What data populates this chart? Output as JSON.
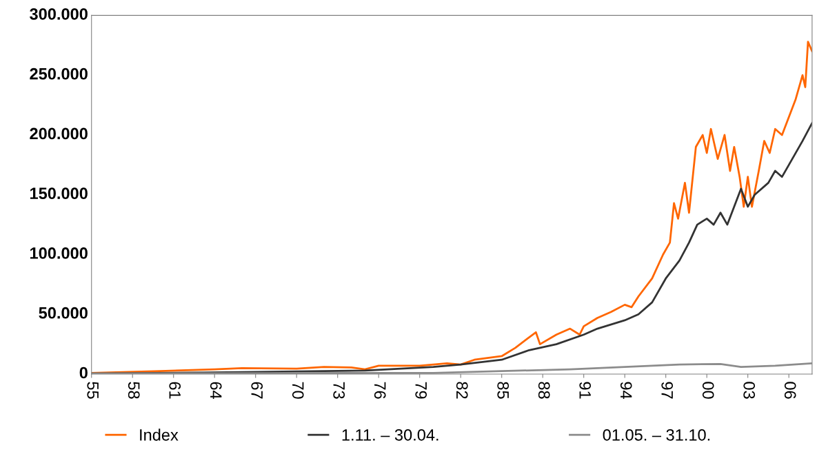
{
  "chart_data": {
    "type": "line",
    "legend": "bottom",
    "grid": false,
    "xlim": [
      1955,
      2007.7
    ],
    "xticks": [
      {
        "value": 1955,
        "label": "55"
      },
      {
        "value": 1958,
        "label": "58"
      },
      {
        "value": 1961,
        "label": "61"
      },
      {
        "value": 1964,
        "label": "64"
      },
      {
        "value": 1967,
        "label": "67"
      },
      {
        "value": 1970,
        "label": "70"
      },
      {
        "value": 1973,
        "label": "73"
      },
      {
        "value": 1976,
        "label": "76"
      },
      {
        "value": 1979,
        "label": "79"
      },
      {
        "value": 1982,
        "label": "82"
      },
      {
        "value": 1985,
        "label": "85"
      },
      {
        "value": 1988,
        "label": "88"
      },
      {
        "value": 1991,
        "label": "91"
      },
      {
        "value": 1994,
        "label": "94"
      },
      {
        "value": 1997,
        "label": "97"
      },
      {
        "value": 2000,
        "label": "00"
      },
      {
        "value": 2003,
        "label": "03"
      },
      {
        "value": 2006,
        "label": "06"
      }
    ],
    "ylim": [
      0,
      300000
    ],
    "yticks": [
      {
        "value": 0,
        "label": "0"
      },
      {
        "value": 50000,
        "label": "50.000"
      },
      {
        "value": 100000,
        "label": "100.000"
      },
      {
        "value": 150000,
        "label": "150.000"
      },
      {
        "value": 200000,
        "label": "200.000"
      },
      {
        "value": 250000,
        "label": "250.000"
      },
      {
        "value": 300000,
        "label": "300.000"
      }
    ],
    "series": [
      {
        "name": "Index",
        "color": "#ff6600",
        "x": [
          1955,
          1960,
          1964,
          1966,
          1970,
          1972,
          1974,
          1975,
          1976,
          1979,
          1981,
          1982,
          1983,
          1985,
          1986,
          1987.5,
          1987.8,
          1989,
          1990,
          1990.7,
          1991,
          1992,
          1993,
          1994,
          1994.5,
          1995,
          1996,
          1996.8,
          1997.3,
          1997.6,
          1997.9,
          1998.4,
          1998.7,
          1999.2,
          1999.7,
          2000,
          2000.3,
          2000.8,
          2001.3,
          2001.7,
          2002,
          2002.4,
          2002.7,
          2003,
          2003.3,
          2003.8,
          2004.2,
          2004.6,
          2005,
          2005.5,
          2006,
          2006.5,
          2007,
          2007.2,
          2007.4,
          2007.7
        ],
        "values": [
          1000,
          2500,
          4000,
          5000,
          4500,
          6000,
          5500,
          4000,
          7000,
          7000,
          9000,
          8000,
          12000,
          15000,
          22000,
          35000,
          25000,
          33000,
          38000,
          33000,
          40000,
          47000,
          52000,
          58000,
          56000,
          65000,
          80000,
          100000,
          110000,
          143000,
          130000,
          160000,
          135000,
          190000,
          200000,
          185000,
          205000,
          180000,
          200000,
          170000,
          190000,
          165000,
          140000,
          165000,
          140000,
          170000,
          195000,
          185000,
          205000,
          200000,
          215000,
          230000,
          250000,
          240000,
          278000,
          270000
        ]
      },
      {
        "name": "1.11. – 30.04.",
        "color": "#333333",
        "x": [
          1955,
          1965,
          1975,
          1980,
          1982,
          1985,
          1987,
          1989,
          1991,
          1992,
          1994,
          1995,
          1996,
          1997,
          1998,
          1998.7,
          1999.3,
          2000,
          2000.5,
          2001,
          2001.5,
          2002,
          2002.5,
          2003,
          2003.5,
          2004.5,
          2005,
          2005.5,
          2006,
          2007,
          2007.7
        ],
        "values": [
          500,
          1500,
          3000,
          6000,
          8000,
          12000,
          20000,
          25000,
          33000,
          38000,
          45000,
          50000,
          60000,
          80000,
          95000,
          110000,
          125000,
          130000,
          125000,
          135000,
          125000,
          140000,
          155000,
          140000,
          150000,
          160000,
          170000,
          165000,
          175000,
          195000,
          210000
        ]
      },
      {
        "name": "01.05. – 31.10.",
        "color": "#8c8c8c",
        "x": [
          1955,
          1970,
          1980,
          1990,
          1998,
          2001,
          2002.5,
          2005,
          2007.7
        ],
        "values": [
          500,
          800,
          1000,
          4000,
          8000,
          8500,
          6000,
          7000,
          9000
        ]
      }
    ]
  }
}
